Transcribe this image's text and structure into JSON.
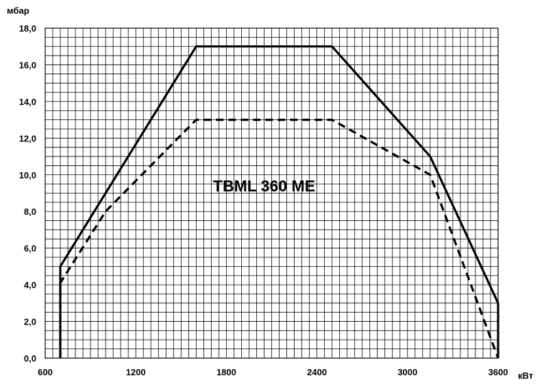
{
  "chart_data": {
    "type": "line",
    "title": "",
    "annotation": "TBML 360 ME",
    "xlabel": "кВт",
    "ylabel": "мбар",
    "xlim": [
      600,
      3600
    ],
    "ylim": [
      0,
      18
    ],
    "x_ticks": [
      600,
      1200,
      1800,
      2400,
      3000,
      3600
    ],
    "x_tick_labels": [
      "600",
      "1200",
      "1800",
      "2400",
      "3000",
      "3600"
    ],
    "y_ticks": [
      0,
      2,
      4,
      6,
      8,
      10,
      12,
      14,
      16,
      18
    ],
    "y_tick_labels": [
      "0,0",
      "2,0",
      "4,0",
      "6,0",
      "8,0",
      "10,0",
      "12,0",
      "14,0",
      "16,0",
      "18,0"
    ],
    "grid": true,
    "legend": "none",
    "series": [
      {
        "style": "solid",
        "color": "#000000",
        "x": [
          700,
          700,
          1600,
          2500,
          3150,
          3600,
          3600
        ],
        "y": [
          0,
          5,
          17,
          17,
          11,
          3,
          0
        ]
      },
      {
        "style": "dashed",
        "color": "#000000",
        "x": [
          700,
          700,
          1000,
          1600,
          2500,
          3150,
          3600
        ],
        "y": [
          0,
          4.1,
          8,
          13,
          13,
          10,
          0
        ]
      }
    ]
  }
}
